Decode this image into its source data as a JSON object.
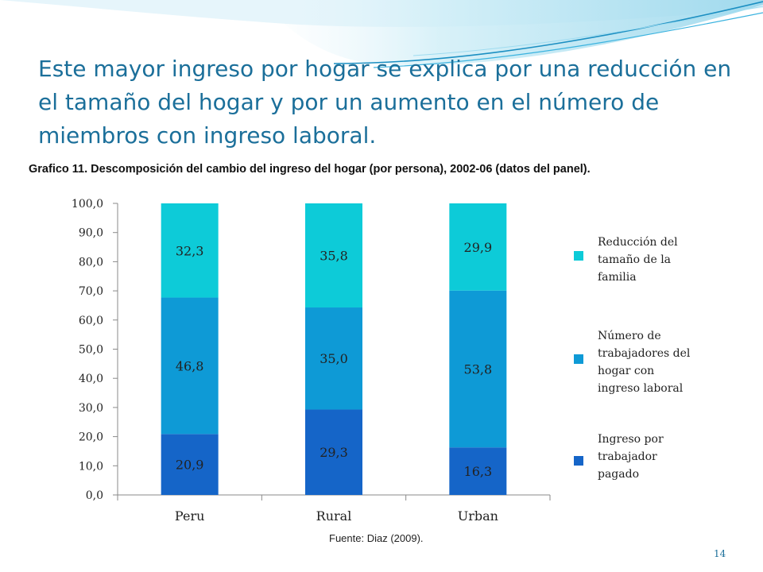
{
  "slide": {
    "title": "Este mayor ingreso por hogar se explica por una reducción en el tamaño del hogar y por un aumento en el número de miembros con ingreso laboral.",
    "source": "Fuente: Diaz (2009).",
    "page_number": "14"
  },
  "colors": {
    "title": "#1b6f9a",
    "series_top": "#0dcbd8",
    "series_middle": "#0e9ad6",
    "series_bottom": "#1565c8"
  },
  "chart_data": {
    "type": "bar",
    "stacked": true,
    "title": "Grafico 11. Descomposición del cambio del ingreso del hogar (por persona), 2002-06 (datos del panel).",
    "categories": [
      "Peru",
      "Rural",
      "Urban"
    ],
    "series": [
      {
        "name": "Ingreso por trabajador pagado",
        "values": [
          20.9,
          29.3,
          16.3
        ],
        "labels": [
          "20,9",
          "29,3",
          "16,3"
        ],
        "color": "#1565c8"
      },
      {
        "name": "Número de trabajadores del hogar con ingreso laboral",
        "values": [
          46.8,
          35.0,
          53.8
        ],
        "labels": [
          "46,8",
          "35,0",
          "53,8"
        ],
        "color": "#0e9ad6"
      },
      {
        "name": "Reducción del tamaño de la familia",
        "values": [
          32.3,
          35.8,
          29.9
        ],
        "labels": [
          "32,3",
          "35,8",
          "29,9"
        ],
        "color": "#0dcbd8"
      }
    ],
    "y_ticks": [
      "0,0",
      "10,0",
      "20,0",
      "30,0",
      "40,0",
      "50,0",
      "60,0",
      "70,0",
      "80,0",
      "90,0",
      "100,0"
    ],
    "ylim": [
      0,
      100
    ],
    "grid": false,
    "legend_position": "right"
  },
  "legend": [
    {
      "label_lines": [
        "Reducción del",
        "tamaño de la",
        "familia"
      ],
      "color": "#0dcbd8"
    },
    {
      "label_lines": [
        "Número de",
        "trabajadores del",
        "hogar con",
        "ingreso laboral"
      ],
      "color": "#0e9ad6"
    },
    {
      "label_lines": [
        "Ingreso por",
        "trabajador",
        "pagado"
      ],
      "color": "#1565c8"
    }
  ]
}
